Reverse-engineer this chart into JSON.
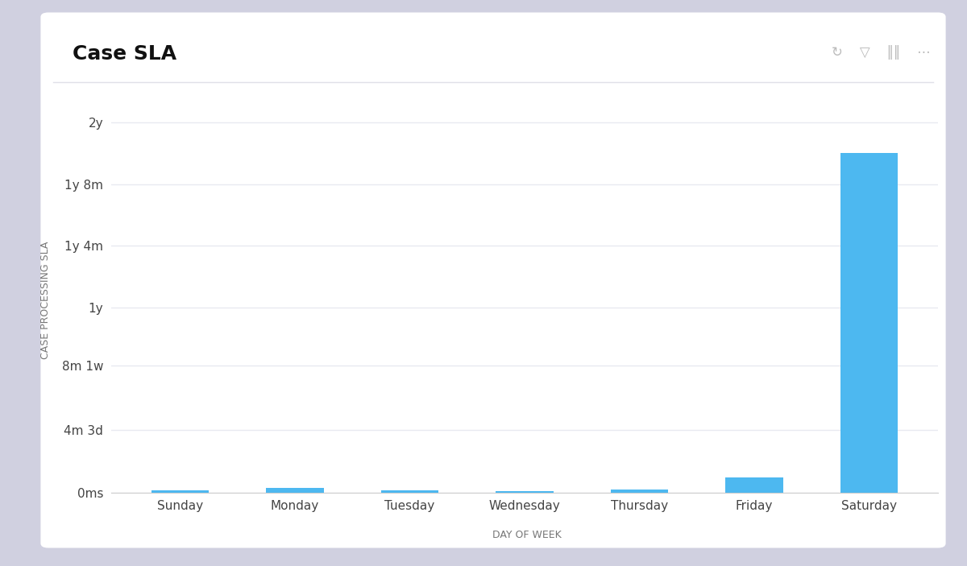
{
  "title": "Case SLA",
  "xlabel": "DAY OF WEEK",
  "ylabel": "CASE PROCESSING SLA",
  "categories": [
    "Sunday",
    "Monday",
    "Tuesday",
    "Wednesday",
    "Thursday",
    "Friday",
    "Saturday"
  ],
  "values_days": [
    3.5,
    9.0,
    4.5,
    2.5,
    5.5,
    30.0,
    670.0
  ],
  "bar_color": "#4DB8F0",
  "background_outer": "#D0D0E0",
  "background_inner": "#FFFFFF",
  "yticks_days": [
    0,
    123,
    251,
    365,
    487,
    608,
    730
  ],
  "ytick_labels": [
    "0ms",
    "4m 3d",
    "8m 1w",
    "1y",
    "1y 4m",
    "1y 8m",
    "2y"
  ],
  "ylim": [
    0,
    760
  ],
  "grid_color": "#E8EAF0",
  "title_fontsize": 18,
  "axis_label_fontsize": 9,
  "tick_fontsize": 11,
  "icon_text": "↻    ▽    ‖‖    ⋯"
}
